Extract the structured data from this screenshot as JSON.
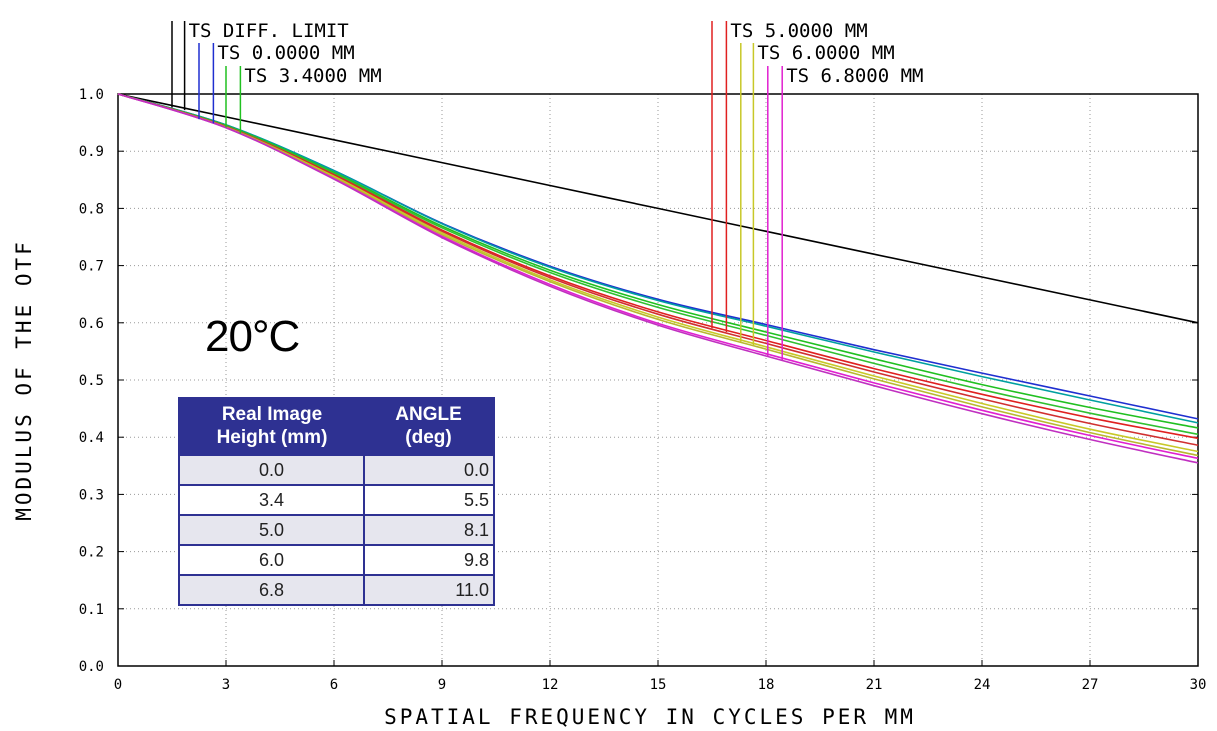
{
  "chart_data": {
    "type": "line",
    "xlabel": "SPATIAL FREQUENCY IN CYCLES PER MM",
    "ylabel": "MODULUS OF THE OTF",
    "xlim": [
      0,
      30
    ],
    "ylim": [
      0,
      1
    ],
    "x_ticks": [
      0,
      3,
      6,
      9,
      12,
      15,
      18,
      21,
      24,
      27,
      30
    ],
    "y_ticks": [
      "0.0",
      "0.1",
      "0.2",
      "0.3",
      "0.4",
      "0.5",
      "0.6",
      "0.7",
      "0.8",
      "0.9",
      "1.0"
    ],
    "grid": true,
    "x": [
      0,
      3,
      6,
      9,
      12,
      15,
      18,
      21,
      24,
      27,
      30
    ],
    "legend_labels": [
      "TS DIFF. LIMIT",
      "TS 0.0000 MM",
      "TS 3.4000 MM",
      "TS 5.0000 MM",
      "TS 6.0000 MM",
      "TS 6.8000 MM"
    ],
    "series": [
      {
        "name": "TS DIFF. LIMIT",
        "color": "#000000",
        "values": [
          1.0,
          0.96,
          0.92,
          0.88,
          0.84,
          0.8,
          0.76,
          0.72,
          0.68,
          0.64,
          0.6
        ]
      },
      {
        "color": "#1f2fd0",
        "values": [
          1.0,
          0.946,
          0.866,
          0.774,
          0.699,
          0.641,
          0.597,
          0.553,
          0.512,
          0.472,
          0.432
        ]
      },
      {
        "color": "#00a0a0",
        "values": [
          1.0,
          0.946,
          0.866,
          0.773,
          0.697,
          0.639,
          0.594,
          0.549,
          0.506,
          0.465,
          0.425
        ]
      },
      {
        "color": "#20c020",
        "values": [
          1.0,
          0.945,
          0.863,
          0.769,
          0.692,
          0.632,
          0.584,
          0.537,
          0.492,
          0.452,
          0.416
        ]
      },
      {
        "color": "#30c030",
        "values": [
          1.0,
          0.944,
          0.861,
          0.766,
          0.688,
          0.627,
          0.578,
          0.529,
          0.483,
          0.442,
          0.405
        ]
      },
      {
        "color": "#e02020",
        "values": [
          1.0,
          0.943,
          0.859,
          0.762,
          0.682,
          0.619,
          0.569,
          0.52,
          0.475,
          0.434,
          0.398
        ]
      },
      {
        "color": "#d03030",
        "values": [
          1.0,
          0.943,
          0.857,
          0.76,
          0.679,
          0.615,
          0.564,
          0.514,
          0.467,
          0.424,
          0.386
        ]
      },
      {
        "color": "#c8c828",
        "values": [
          1.0,
          0.942,
          0.856,
          0.757,
          0.675,
          0.61,
          0.558,
          0.507,
          0.459,
          0.414,
          0.375
        ]
      },
      {
        "color": "#b8b830",
        "values": [
          1.0,
          0.942,
          0.854,
          0.754,
          0.672,
          0.606,
          0.554,
          0.502,
          0.453,
          0.408,
          0.368
        ]
      },
      {
        "color": "#e020d0",
        "values": [
          1.0,
          0.941,
          0.852,
          0.751,
          0.667,
          0.599,
          0.546,
          0.495,
          0.447,
          0.403,
          0.363
        ]
      },
      {
        "color": "#c030c0",
        "values": [
          1.0,
          0.941,
          0.851,
          0.749,
          0.664,
          0.596,
          0.542,
          0.49,
          0.441,
          0.396,
          0.355
        ]
      }
    ],
    "legend_markers": [
      {
        "color": "#000000",
        "x": [
          1.5,
          1.85
        ],
        "label_index": 0
      },
      {
        "color": "#1f2fd0",
        "x": [
          2.25,
          2.65
        ],
        "label_index": 1
      },
      {
        "color": "#20c020",
        "x": [
          3.0,
          3.4
        ],
        "label_index": 2
      },
      {
        "color": "#e02020",
        "x": [
          16.5,
          16.9
        ],
        "label_index": 3
      },
      {
        "color": "#c8c828",
        "x": [
          17.3,
          17.65
        ],
        "label_index": 4
      },
      {
        "color": "#e020d0",
        "x": [
          18.05,
          18.45
        ],
        "label_index": 5
      }
    ]
  },
  "annotation": {
    "temperature": "20°C"
  },
  "table": {
    "headers": [
      "Real Image Height (mm)",
      "ANGLE (deg)"
    ],
    "header_lines": [
      [
        "Real Image",
        "Height (mm)"
      ],
      [
        "ANGLE",
        "(deg)"
      ]
    ],
    "rows": [
      {
        "height": "0.0",
        "angle": "0.0"
      },
      {
        "height": "3.4",
        "angle": "5.5"
      },
      {
        "height": "5.0",
        "angle": "8.1"
      },
      {
        "height": "6.0",
        "angle": "9.8"
      },
      {
        "height": "6.8",
        "angle": "11.0"
      }
    ]
  }
}
